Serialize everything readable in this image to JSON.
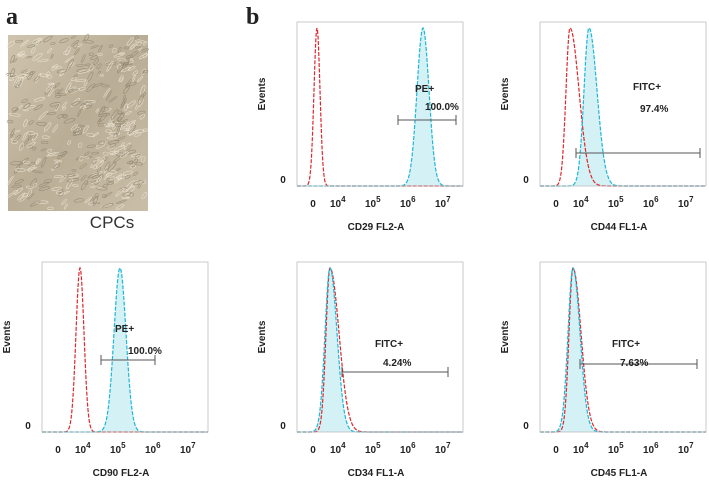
{
  "panel_a": {
    "label": "a",
    "caption": "CPCs"
  },
  "panel_b": {
    "label": "b"
  },
  "histograms": [
    {
      "y_label": "Events",
      "y_tick": "0",
      "x_ticks": [
        "0",
        {
          "base": "10",
          "exp": "4"
        },
        {
          "base": "10",
          "exp": "5"
        },
        {
          "base": "10",
          "exp": "6"
        },
        {
          "base": "10",
          "exp": "7"
        }
      ],
      "x_label": "CD29 FL2-A",
      "gate_label": "PE+",
      "gate_percent": "100.0%"
    },
    {
      "y_label": "Events",
      "y_tick": "0",
      "x_ticks": [
        "0",
        {
          "base": "10",
          "exp": "4"
        },
        {
          "base": "10",
          "exp": "5"
        },
        {
          "base": "10",
          "exp": "6"
        },
        {
          "base": "10",
          "exp": "7"
        }
      ],
      "x_label": "CD44 FL1-A",
      "gate_label": "FITC+",
      "gate_percent": "97.4%"
    },
    {
      "y_label": "Events",
      "y_tick": "0",
      "x_ticks": [
        "0",
        {
          "base": "10",
          "exp": "4"
        },
        {
          "base": "10",
          "exp": "5"
        },
        {
          "base": "10",
          "exp": "6"
        },
        {
          "base": "10",
          "exp": "7"
        }
      ],
      "x_label": "CD90 FL2-A",
      "gate_label": "PE+",
      "gate_percent": "100.0%"
    },
    {
      "y_label": "Events",
      "y_tick": "0",
      "x_ticks": [
        "0",
        {
          "base": "10",
          "exp": "4"
        },
        {
          "base": "10",
          "exp": "5"
        },
        {
          "base": "10",
          "exp": "6"
        },
        {
          "base": "10",
          "exp": "7"
        }
      ],
      "x_label": "CD34 FL1-A",
      "gate_label": "FITC+",
      "gate_percent": "4.24%"
    },
    {
      "y_label": "Events",
      "y_tick": "0",
      "x_ticks": [
        "0",
        {
          "base": "10",
          "exp": "4"
        },
        {
          "base": "10",
          "exp": "5"
        },
        {
          "base": "10",
          "exp": "6"
        },
        {
          "base": "10",
          "exp": "7"
        }
      ],
      "x_label": "CD45 FL1-A",
      "gate_label": "FITC+",
      "gate_percent": "7.63%"
    }
  ]
}
